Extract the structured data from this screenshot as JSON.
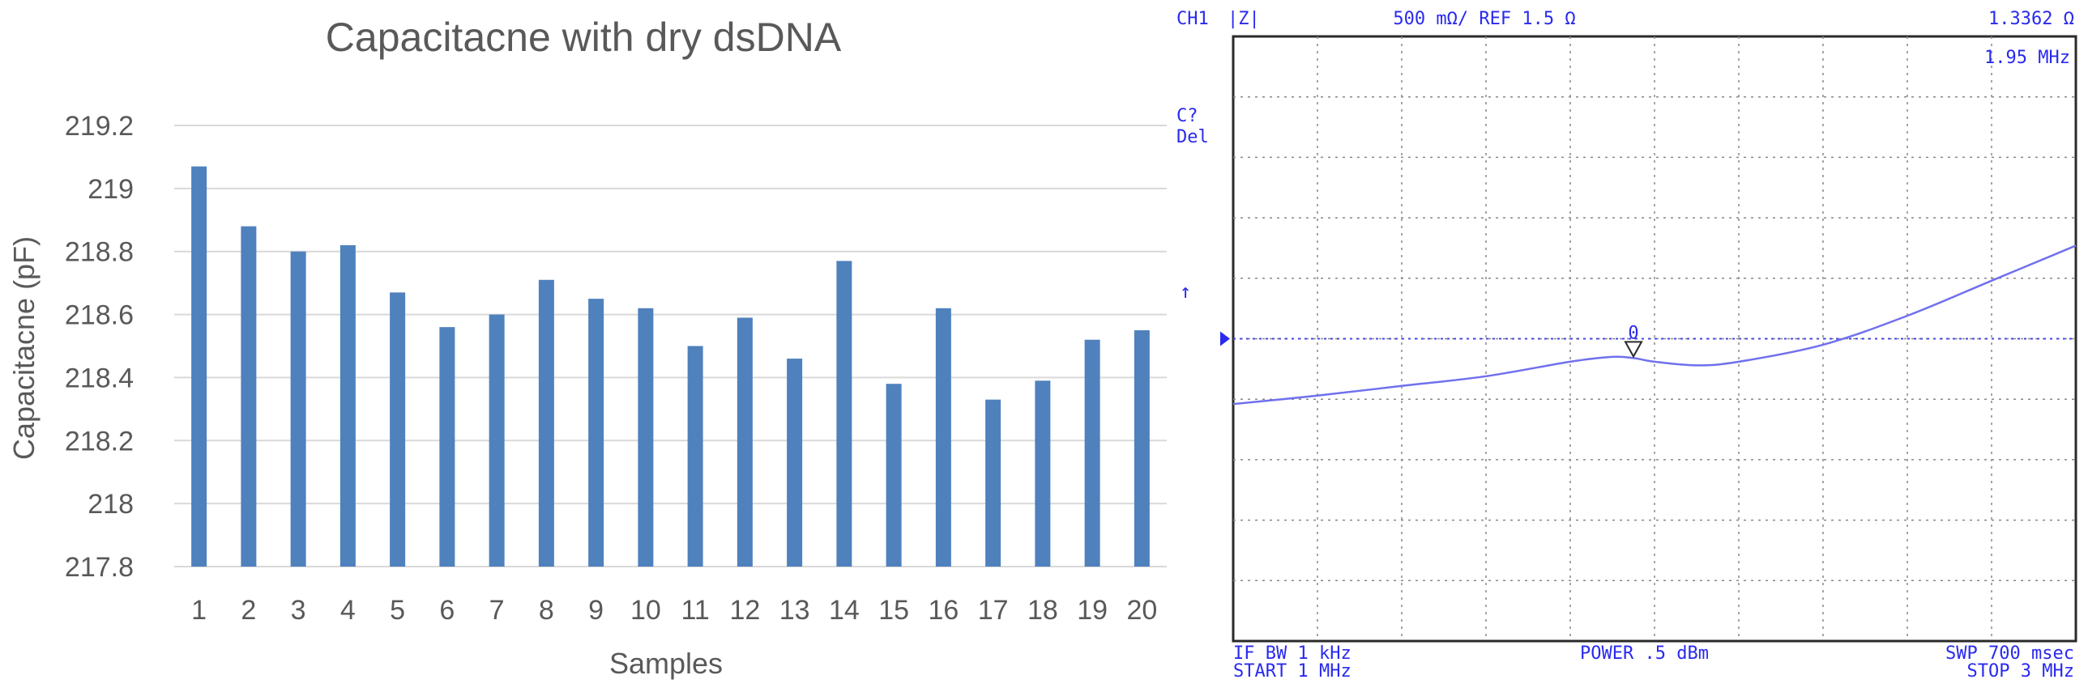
{
  "chart_data": [
    {
      "type": "bar",
      "title": "Capacitacne with dry dsDNA",
      "xlabel": "Samples",
      "ylabel": "Capacitacne (pF)",
      "categories": [
        "1",
        "2",
        "3",
        "4",
        "5",
        "6",
        "7",
        "8",
        "9",
        "10",
        "11",
        "12",
        "13",
        "14",
        "15",
        "16",
        "17",
        "18",
        "19",
        "20"
      ],
      "values": [
        219.07,
        218.88,
        218.8,
        218.82,
        218.67,
        218.56,
        218.6,
        218.71,
        218.65,
        218.62,
        218.5,
        218.59,
        218.46,
        218.77,
        218.38,
        218.62,
        218.33,
        218.39,
        218.52,
        218.55
      ],
      "ylim": [
        217.8,
        219.2
      ],
      "yticks": [
        "217.8",
        "218",
        "218.2",
        "218.4",
        "218.6",
        "218.8",
        "219",
        "219.2"
      ],
      "grid": true,
      "bar_color": "#4f81bd"
    },
    {
      "type": "line",
      "header": {
        "channel": "CH1",
        "param": "|Z|",
        "scale": "500 mΩ/ REF 1.5 Ω",
        "marker_value": "1.3362 Ω",
        "marker_freq": "1.95 MHz"
      },
      "side_labels": {
        "c": "C?",
        "del": "Del"
      },
      "marker_label": "0",
      "footer": {
        "if_bw": "IF BW  1 kHz",
        "start": "START  1 MHz",
        "power": "POWER  .5 dBm",
        "swp": "SWP  700 msec",
        "stop": "STOP  3 MHz"
      },
      "x_range_mhz": [
        1,
        3
      ],
      "y_range_ohm": [
        -1,
        4
      ],
      "reference_level_ohm": 1.5,
      "x": [
        1.0,
        1.2,
        1.4,
        1.6,
        1.8,
        1.9,
        1.95,
        2.0,
        2.1,
        2.2,
        2.4,
        2.6,
        2.8,
        3.0
      ],
      "y": [
        0.96,
        1.03,
        1.11,
        1.19,
        1.31,
        1.35,
        1.34,
        1.31,
        1.28,
        1.31,
        1.45,
        1.69,
        1.98,
        2.27
      ],
      "colors": {
        "trace": "#7070ee",
        "text": "#2a2aee",
        "grid": "#888888"
      }
    }
  ]
}
